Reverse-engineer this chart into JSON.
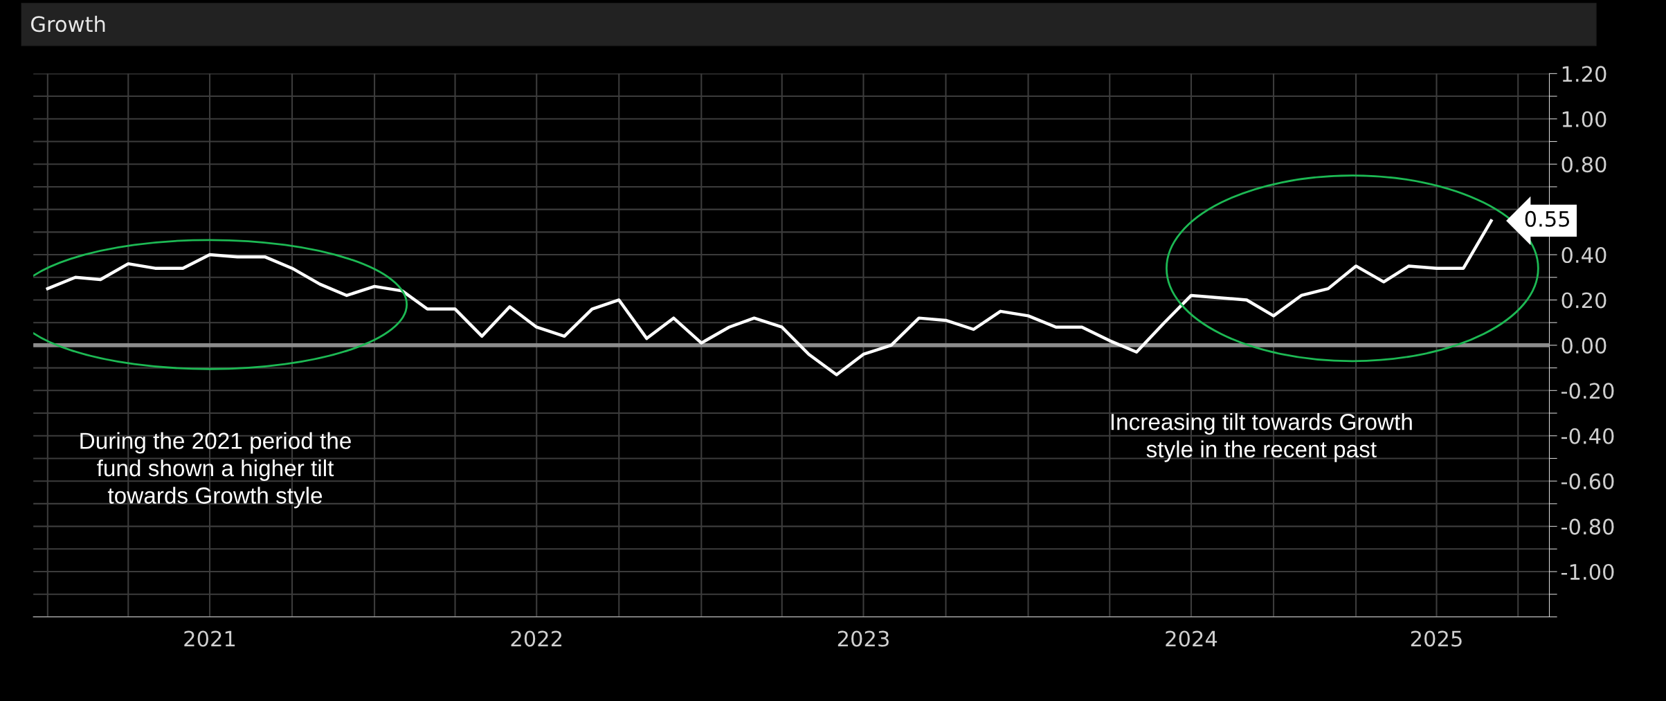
{
  "chart_data": {
    "type": "line",
    "title": "Growth",
    "x": [
      "2021-01",
      "2021-02",
      "2021-03",
      "2021-04",
      "2021-05",
      "2021-06",
      "2021-07",
      "2021-08",
      "2021-09",
      "2021-10",
      "2021-11",
      "2021-12",
      "2022-01",
      "2022-02",
      "2022-03",
      "2022-04",
      "2022-05",
      "2022-06",
      "2022-07",
      "2022-08",
      "2022-09",
      "2022-10",
      "2022-11",
      "2022-12",
      "2023-01",
      "2023-02",
      "2023-03",
      "2023-04",
      "2023-05",
      "2023-06",
      "2023-07",
      "2023-08",
      "2023-09",
      "2023-10",
      "2023-11",
      "2023-12",
      "2024-01",
      "2024-02",
      "2024-03",
      "2024-04",
      "2024-05",
      "2024-06",
      "2024-07",
      "2024-08",
      "2024-09",
      "2024-10",
      "2024-11",
      "2024-12",
      "2025-01",
      "2025-02",
      "2025-03",
      "2025-04",
      "2025-05",
      "2025-06"
    ],
    "series": [
      {
        "color": "#ffffff",
        "values": [
          0.25,
          0.3,
          0.29,
          0.36,
          0.34,
          0.34,
          0.4,
          0.39,
          0.39,
          0.34,
          0.27,
          0.22,
          0.26,
          0.24,
          0.16,
          0.16,
          0.04,
          0.17,
          0.08,
          0.04,
          0.16,
          0.2,
          0.03,
          0.12,
          0.01,
          0.08,
          0.12,
          0.08,
          -0.04,
          -0.13,
          -0.04,
          0.0,
          0.12,
          0.11,
          0.07,
          0.15,
          0.13,
          0.08,
          0.08,
          0.02,
          -0.03,
          0.1,
          0.22,
          0.21,
          0.2,
          0.13,
          0.22,
          0.25,
          0.35,
          0.28,
          0.35,
          0.34,
          0.34,
          0.55
        ],
        "value_labels": [
          null,
          null,
          null,
          null,
          null,
          null,
          null,
          null,
          null,
          null,
          null,
          null,
          null,
          null,
          null,
          null,
          null,
          null,
          null,
          null,
          null,
          null,
          null,
          null,
          null,
          null,
          null,
          null,
          null,
          null,
          null,
          null,
          null,
          null,
          null,
          null,
          null,
          null,
          null,
          null,
          null,
          null,
          null,
          null,
          null,
          null,
          null,
          null,
          null,
          null,
          null,
          null,
          null,
          "0.55"
        ]
      }
    ],
    "xlim": [
      "2020-12-16",
      "2025-08-05"
    ],
    "xticks": [
      {
        "value": "2021-01-01",
        "label": null
      },
      {
        "value": "2021-04-01",
        "label": null
      },
      {
        "value": "2021-07-01",
        "label": "2021"
      },
      {
        "value": "2021-10-01",
        "label": null
      },
      {
        "value": "2022-01-01",
        "label": null
      },
      {
        "value": "2022-04-01",
        "label": null
      },
      {
        "value": "2022-07-01",
        "label": "2022"
      },
      {
        "value": "2022-10-01",
        "label": null
      },
      {
        "value": "2023-01-01",
        "label": null
      },
      {
        "value": "2023-04-01",
        "label": null
      },
      {
        "value": "2023-07-01",
        "label": "2023"
      },
      {
        "value": "2023-10-01",
        "label": null
      },
      {
        "value": "2024-01-01",
        "label": null
      },
      {
        "value": "2024-04-01",
        "label": null
      },
      {
        "value": "2024-07-01",
        "label": "2024"
      },
      {
        "value": "2024-10-01",
        "label": null
      },
      {
        "value": "2025-01-01",
        "label": null
      },
      {
        "value": "2025-04-01",
        "label": "2025"
      },
      {
        "value": "2025-07-01",
        "label": null
      }
    ],
    "ylim": [
      -1.2,
      1.2
    ],
    "yticks": [
      {
        "value": -1.2,
        "label": null
      },
      {
        "value": -1.1,
        "label": null
      },
      {
        "value": -1.0,
        "label": "-1.00"
      },
      {
        "value": -0.9,
        "label": null
      },
      {
        "value": -0.8,
        "label": "-0.80"
      },
      {
        "value": -0.7,
        "label": null
      },
      {
        "value": -0.6,
        "label": "-0.60"
      },
      {
        "value": -0.5,
        "label": null
      },
      {
        "value": -0.4,
        "label": "-0.40"
      },
      {
        "value": -0.3,
        "label": null
      },
      {
        "value": -0.2,
        "label": "-0.20"
      },
      {
        "value": -0.1,
        "label": null
      },
      {
        "value": 0.0,
        "label": "0.00"
      },
      {
        "value": 0.1,
        "label": null
      },
      {
        "value": 0.2,
        "label": "0.20"
      },
      {
        "value": 0.3,
        "label": null
      },
      {
        "value": 0.4,
        "label": "0.40"
      },
      {
        "value": 0.5,
        "label": null
      },
      {
        "value": 0.6,
        "label": null
      },
      {
        "value": 0.7,
        "label": null
      },
      {
        "value": 0.8,
        "label": "0.80"
      },
      {
        "value": 0.9,
        "label": null
      },
      {
        "value": 1.0,
        "label": "1.00"
      },
      {
        "value": 1.1,
        "label": null
      },
      {
        "value": 1.2,
        "label": "1.20"
      }
    ],
    "ref_lines": [
      {
        "axis": "y",
        "value": 0,
        "color": "#8c8c8c"
      }
    ],
    "annotations": [
      "During the 2021 period the\nfund shown a higher tilt\ntowards Growth style",
      "Increasing tilt towards Growth\nstyle in the recent past"
    ],
    "grid": true,
    "marker": "none",
    "line_style": "solid",
    "legend": false
  }
}
